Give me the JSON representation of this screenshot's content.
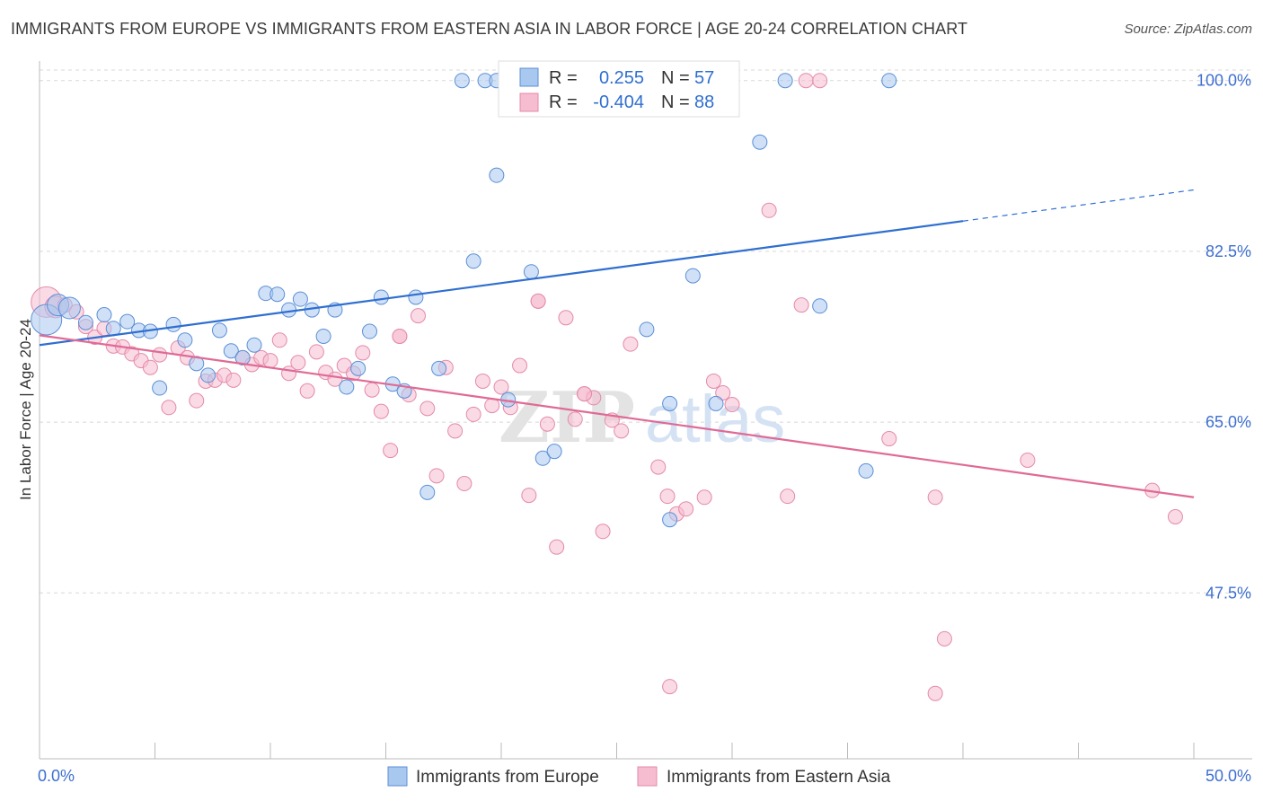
{
  "title": "IMMIGRANTS FROM EUROPE VS IMMIGRANTS FROM EASTERN ASIA IN LABOR FORCE | AGE 20-24 CORRELATION CHART",
  "source": "Source: ZipAtlas.com",
  "watermark": {
    "zip": "ZIP",
    "atlas": "atlas"
  },
  "colors": {
    "blue_fill": "#a9c8f0",
    "blue_stroke": "#5b8fd6",
    "blue_line": "#2f6fd0",
    "pink_fill": "#f6bcd0",
    "pink_stroke": "#e48aaa",
    "pink_line": "#e06a95",
    "tick_text": "#3d6fd0",
    "grid": "#d8d8d8",
    "value_text": "#2f6fd0"
  },
  "legend_top": {
    "rows": [
      {
        "r_label": "R =",
        "r_value": "0.255",
        "n_label": "N =",
        "n_value": "57",
        "series": "blue"
      },
      {
        "r_label": "R =",
        "r_value": "-0.404",
        "n_label": "N =",
        "n_value": "88",
        "series": "pink"
      }
    ]
  },
  "chart_data": {
    "type": "scatter",
    "title": "IMMIGRANTS FROM EUROPE VS IMMIGRANTS FROM EASTERN ASIA IN LABOR FORCE | AGE 20-24 CORRELATION CHART",
    "xlabel": "",
    "ylabel": "In Labor Force | Age 20-24",
    "xlim": [
      0,
      50
    ],
    "ylim": [
      30.5,
      102
    ],
    "x_tick_labels": [
      "0.0%",
      "50.0%"
    ],
    "y_ticks": [
      47.5,
      65.0,
      82.5,
      100.0
    ],
    "y_tick_labels": [
      "47.5%",
      "65.0%",
      "82.5%",
      "100.0%"
    ],
    "grid": "horizontal-dashed",
    "legend_position": "bottom",
    "series": [
      {
        "name": "Immigrants from Europe",
        "color": "blue",
        "trend": {
          "x0": 0,
          "y0": 72.9,
          "x1": 40,
          "y1": 85.6,
          "dashed_to_x": 50,
          "dashed_to_y": 88.8
        },
        "points": [
          [
            0.3,
            75.5,
            3
          ],
          [
            0.8,
            77.0,
            2
          ],
          [
            1.3,
            76.7,
            2
          ],
          [
            2.0,
            75.2,
            1
          ],
          [
            2.8,
            76.0,
            1
          ],
          [
            3.2,
            74.6,
            1
          ],
          [
            3.8,
            75.3,
            1
          ],
          [
            4.3,
            74.4,
            1
          ],
          [
            4.8,
            74.3,
            1
          ],
          [
            5.2,
            68.5,
            1
          ],
          [
            5.8,
            75.0,
            1
          ],
          [
            6.3,
            73.4,
            1
          ],
          [
            6.8,
            71.0,
            1
          ],
          [
            7.3,
            69.8,
            1
          ],
          [
            7.8,
            74.4,
            1
          ],
          [
            8.3,
            72.3,
            1
          ],
          [
            8.8,
            71.6,
            1
          ],
          [
            9.3,
            72.9,
            1
          ],
          [
            9.8,
            78.2,
            1
          ],
          [
            10.3,
            78.1,
            1
          ],
          [
            10.8,
            76.5,
            1
          ],
          [
            11.3,
            77.6,
            1
          ],
          [
            11.8,
            76.5,
            1
          ],
          [
            12.3,
            73.8,
            1
          ],
          [
            12.8,
            76.5,
            1
          ],
          [
            13.3,
            68.6,
            1
          ],
          [
            13.8,
            70.5,
            1
          ],
          [
            14.3,
            74.3,
            1
          ],
          [
            14.8,
            77.8,
            1
          ],
          [
            15.3,
            68.9,
            1
          ],
          [
            15.8,
            68.2,
            1
          ],
          [
            16.3,
            77.8,
            1
          ],
          [
            16.8,
            57.8,
            1
          ],
          [
            17.3,
            70.5,
            1
          ],
          [
            18.3,
            100.0,
            1
          ],
          [
            18.8,
            81.5,
            1
          ],
          [
            19.3,
            100.0,
            1
          ],
          [
            19.8,
            90.3,
            1
          ],
          [
            20.3,
            67.3,
            1
          ],
          [
            21.3,
            80.4,
            1
          ],
          [
            21.8,
            61.3,
            1
          ],
          [
            22.3,
            62.0,
            1
          ],
          [
            23.3,
            100.0,
            1
          ],
          [
            24.3,
            100.0,
            1
          ],
          [
            26.3,
            74.5,
            1
          ],
          [
            27.3,
            55.0,
            1
          ],
          [
            28.3,
            80.0,
            1
          ],
          [
            29.3,
            66.9,
            1
          ],
          [
            31.2,
            93.7,
            1
          ],
          [
            32.3,
            100.0,
            1
          ],
          [
            33.8,
            76.9,
            1
          ],
          [
            35.8,
            60.0,
            1
          ],
          [
            36.8,
            100.0,
            1
          ],
          [
            25.8,
            100.0,
            1
          ],
          [
            22.8,
            100.0,
            1
          ],
          [
            19.8,
            100.0,
            1
          ],
          [
            27.3,
            66.9,
            1
          ]
        ]
      },
      {
        "name": "Immigrants from Eastern Asia",
        "color": "pink",
        "trend": {
          "x0": 0,
          "y0": 73.9,
          "x1": 50,
          "y1": 57.3
        },
        "points": [
          [
            0.3,
            77.3,
            3
          ],
          [
            0.7,
            76.8,
            2
          ],
          [
            1.1,
            77.0,
            1
          ],
          [
            1.6,
            76.3,
            1
          ],
          [
            2.0,
            74.8,
            1
          ],
          [
            2.4,
            73.7,
            1
          ],
          [
            2.8,
            74.6,
            1
          ],
          [
            3.2,
            72.8,
            1
          ],
          [
            3.6,
            72.7,
            1
          ],
          [
            4.0,
            72.0,
            1
          ],
          [
            4.4,
            71.3,
            1
          ],
          [
            4.8,
            70.6,
            1
          ],
          [
            5.2,
            71.9,
            1
          ],
          [
            5.6,
            66.5,
            1
          ],
          [
            6.0,
            72.6,
            1
          ],
          [
            6.4,
            71.6,
            1
          ],
          [
            6.8,
            67.2,
            1
          ],
          [
            7.2,
            69.2,
            1
          ],
          [
            7.6,
            69.3,
            1
          ],
          [
            8.0,
            69.8,
            1
          ],
          [
            8.4,
            69.3,
            1
          ],
          [
            8.8,
            71.6,
            1
          ],
          [
            9.2,
            70.9,
            1
          ],
          [
            9.6,
            71.6,
            1
          ],
          [
            10.0,
            71.3,
            1
          ],
          [
            10.4,
            73.4,
            1
          ],
          [
            10.8,
            70.0,
            1
          ],
          [
            11.2,
            71.1,
            1
          ],
          [
            11.6,
            68.2,
            1
          ],
          [
            12.0,
            72.2,
            1
          ],
          [
            12.4,
            70.1,
            1
          ],
          [
            12.8,
            69.4,
            1
          ],
          [
            13.2,
            70.8,
            1
          ],
          [
            13.6,
            70.0,
            1
          ],
          [
            14.0,
            72.1,
            1
          ],
          [
            14.4,
            68.3,
            1
          ],
          [
            14.8,
            66.1,
            1
          ],
          [
            15.2,
            62.1,
            1
          ],
          [
            15.6,
            73.8,
            1
          ],
          [
            16.0,
            67.8,
            1
          ],
          [
            16.4,
            75.9,
            1
          ],
          [
            16.8,
            66.4,
            1
          ],
          [
            17.2,
            59.5,
            1
          ],
          [
            17.6,
            70.6,
            1
          ],
          [
            18.0,
            64.1,
            1
          ],
          [
            18.4,
            58.7,
            1
          ],
          [
            18.8,
            65.8,
            1
          ],
          [
            19.2,
            69.2,
            1
          ],
          [
            19.6,
            66.7,
            1
          ],
          [
            20.0,
            68.6,
            1
          ],
          [
            20.4,
            66.5,
            1
          ],
          [
            20.8,
            70.8,
            1
          ],
          [
            21.2,
            57.5,
            1
          ],
          [
            21.6,
            77.4,
            1
          ],
          [
            22.0,
            64.8,
            1
          ],
          [
            22.4,
            52.2,
            1
          ],
          [
            22.8,
            75.7,
            1
          ],
          [
            23.2,
            65.3,
            1
          ],
          [
            23.6,
            67.9,
            1
          ],
          [
            24.0,
            67.5,
            1
          ],
          [
            24.4,
            53.8,
            1
          ],
          [
            24.8,
            65.2,
            1
          ],
          [
            25.2,
            64.1,
            1
          ],
          [
            25.6,
            73.0,
            1
          ],
          [
            26.8,
            60.4,
            1
          ],
          [
            27.2,
            57.4,
            1
          ],
          [
            27.6,
            55.6,
            1
          ],
          [
            28.0,
            56.1,
            1
          ],
          [
            28.8,
            57.3,
            1
          ],
          [
            29.2,
            69.2,
            1
          ],
          [
            29.6,
            68.0,
            1
          ],
          [
            30.0,
            66.8,
            1
          ],
          [
            31.6,
            86.7,
            1
          ],
          [
            32.4,
            57.4,
            1
          ],
          [
            33.0,
            77.0,
            1
          ],
          [
            33.2,
            100.0,
            1
          ],
          [
            33.8,
            100.0,
            1
          ],
          [
            36.8,
            63.3,
            1
          ],
          [
            38.8,
            57.3,
            1
          ],
          [
            39.2,
            42.8,
            1
          ],
          [
            38.8,
            37.2,
            1
          ],
          [
            42.8,
            61.1,
            1
          ],
          [
            48.2,
            58.0,
            1
          ],
          [
            49.2,
            55.3,
            1
          ],
          [
            27.3,
            37.9,
            1
          ],
          [
            15.6,
            73.8,
            1
          ],
          [
            21.6,
            77.4,
            1
          ],
          [
            23.6,
            67.9,
            1
          ]
        ]
      }
    ]
  },
  "bottom_legend": [
    {
      "label": "Immigrants from Europe",
      "color": "blue"
    },
    {
      "label": "Immigrants from Eastern Asia",
      "color": "pink"
    }
  ]
}
